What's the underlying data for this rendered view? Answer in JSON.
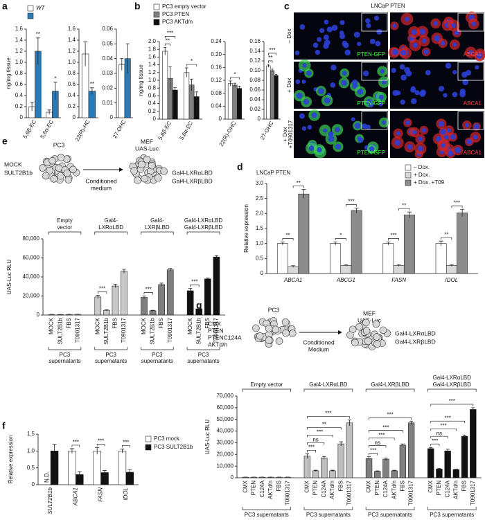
{
  "panel_labels": [
    "a",
    "b",
    "c",
    "d",
    "e",
    "f",
    "g"
  ],
  "microscopy": {
    "title": "LNCaP PTEN",
    "rows": [
      {
        "label": [
          "– Dox"
        ],
        "left": "PTEN-GFP",
        "right": "ABCA1"
      },
      {
        "label": [
          "+ Dox"
        ],
        "left": "PTEN-GFP",
        "right": "ABCA1"
      },
      {
        "label": [
          "+ Dox",
          "+T0901317"
        ],
        "left": "PTEN-GFP",
        "right": "ABCA1"
      }
    ]
  },
  "diagrams": {
    "e": {
      "cell": "PC3",
      "conditions": [
        "MOCK",
        "SULT2B1b"
      ],
      "arrow": [
        "Conditioned",
        "medium"
      ],
      "target": "MEF",
      "reporter": "UAS-Luc",
      "constructs": [
        "Gal4-LXRαLBD",
        "Gal4-LXRβLBD"
      ]
    },
    "g": {
      "cell": "PC3",
      "conditions": [
        "CMX",
        "PTEN",
        "PTENC124A",
        "AKTd/n"
      ],
      "arrow": [
        "Conditioned",
        "Medium"
      ],
      "target": "MEF",
      "reporter": "UAS-Luc",
      "constructs": [
        "Gal4-LXRαLBD",
        "Gal4-LXRβLBD"
      ]
    }
  },
  "chart_data": [
    {
      "type": "bar",
      "ylabel": "ng/mg tissue",
      "categories": [
        "5,6β-EC",
        "5,6α-EC"
      ],
      "series": [
        {
          "name": "WT",
          "color": "#ffffff",
          "values": [
            0.2,
            0.1
          ],
          "errors": [
            0.08,
            0.04
          ]
        },
        {
          "color": "#2a7ab8",
          "values": [
            1.2,
            0.48
          ],
          "errors": [
            0.24,
            0.16
          ],
          "significance": [
            "**",
            "*"
          ]
        }
      ],
      "ylim": [
        0,
        1.6
      ],
      "yticks": [
        0,
        0.2,
        0.4,
        0.6,
        0.8,
        {
          "value": 1,
          "label": "1.0"
        },
        1.2,
        1.4,
        1.6
      ]
    },
    {
      "type": "bar",
      "categories": [
        "22(R)-HC"
      ],
      "series": [
        {
          "color": "#ffffff",
          "values": [
            1.15
          ],
          "errors": [
            0.22
          ]
        },
        {
          "color": "#2a7ab8",
          "values": [
            0.48
          ],
          "errors": [
            0.06
          ],
          "significance": [
            "**"
          ]
        }
      ],
      "ylim": [
        0,
        1.6
      ],
      "yticks": [
        0,
        0.2,
        0.4,
        0.6,
        0.8,
        {
          "value": 1,
          "label": "1.0"
        },
        1.2,
        1.4,
        1.6
      ]
    },
    {
      "type": "bar",
      "categories": [
        "27-OHC"
      ],
      "series": [
        {
          "color": "#ffffff",
          "values": [
            0.036
          ],
          "errors": [
            0.004
          ]
        },
        {
          "color": "#2a7ab8",
          "values": [
            0.04
          ],
          "errors": [
            0.01
          ]
        }
      ],
      "ylim": [
        0,
        0.06
      ],
      "yticks": [
        0,
        0.01,
        0.02,
        0.03,
        0.04,
        0.05,
        0.06
      ]
    },
    {
      "type": "bar",
      "ylabel": "ng/mg tissue",
      "categories": [
        "5,6β-EC",
        "5,6α-EC"
      ],
      "series": [
        {
          "name": "PC3 empty vector",
          "color": "#ffffff",
          "values": [
            1.75,
            1.2
          ],
          "errors": [
            0.1,
            0.12
          ]
        },
        {
          "name": "PC3 PTEN",
          "color": "#7f7f7f",
          "values": [
            1.05,
            0.88
          ],
          "errors": [
            0.3,
            0.15
          ]
        },
        {
          "name": "PC3 AKTd/n",
          "color": "#111111",
          "values": [
            0.75,
            0.58
          ],
          "errors": [
            0.06,
            0.12
          ]
        }
      ],
      "brackets": [
        {
          "category": 0,
          "from": 0,
          "to": 1,
          "text": "**"
        },
        {
          "category": 0,
          "from": 0,
          "to": 2,
          "text": "***"
        },
        {
          "category": 1,
          "from": 0,
          "to": 2,
          "text": "*"
        }
      ],
      "ylim": [
        0,
        2
      ],
      "yticks": [
        0,
        0.2,
        0.4,
        0.6,
        0.8,
        {
          "value": 1,
          "label": "1.0"
        },
        1.2,
        1.4,
        1.6,
        1.8,
        {
          "value": 2,
          "label": "2.0"
        }
      ]
    },
    {
      "type": "bar",
      "categories": [
        "22(R)-OHC"
      ],
      "series": [
        {
          "color": "#ffffff",
          "values": [
            0.11
          ],
          "errors": [
            0.008
          ]
        },
        {
          "color": "#7f7f7f",
          "values": [
            0.105
          ],
          "errors": [
            0.006
          ]
        },
        {
          "color": "#111111",
          "values": [
            0.095
          ],
          "errors": [
            0.007
          ]
        }
      ],
      "brackets": [
        {
          "category": 0,
          "from": 0,
          "to": 2,
          "text": "*"
        }
      ],
      "ylim": [
        0,
        0.24
      ],
      "yticks": [
        0,
        0.04,
        0.08,
        0.12,
        0.16,
        {
          "value": 0.2,
          "label": "0.20"
        },
        0.24
      ]
    },
    {
      "type": "bar",
      "categories": [
        "27-OHC"
      ],
      "series": [
        {
          "color": "#ffffff",
          "values": [
            0.11
          ],
          "errors": [
            0.003
          ]
        },
        {
          "color": "#7f7f7f",
          "values": [
            0.1
          ],
          "errors": [
            0.003
          ]
        },
        {
          "color": "#111111",
          "values": [
            0.09
          ],
          "errors": [
            0.002
          ]
        }
      ],
      "brackets": [
        {
          "category": 0,
          "from": 0,
          "to": 1,
          "text": "**"
        },
        {
          "category": 0,
          "from": 0,
          "to": 2,
          "text": "***"
        }
      ],
      "ylim": [
        0,
        0.16
      ],
      "yticks": [
        0,
        0.02,
        0.04,
        0.06,
        0.08,
        {
          "value": 0.1,
          "label": "0.10"
        },
        0.12,
        0.14,
        0.16
      ]
    },
    {
      "type": "bar",
      "title": "LNCaP PTEN",
      "ylabel": "Relative expression",
      "categories": [
        "ABCA1",
        "ABCG1",
        "FASN",
        "IDOL"
      ],
      "series": [
        {
          "name": "– Dox.",
          "color": "#ffffff",
          "values": [
            1,
            1,
            1,
            1
          ],
          "errors": [
            0.05,
            0.05,
            0.05,
            0.08
          ]
        },
        {
          "name": "+ Dox.",
          "color": "#d9d9d9",
          "values": [
            0.23,
            0.27,
            0.27,
            0.27
          ],
          "errors": [
            0.03,
            0.03,
            0.03,
            0.03
          ]
        },
        {
          "name": "+ Dox. +T09",
          "color": "#8c8c8c",
          "values": [
            2.65,
            2.1,
            1.95,
            2.02
          ],
          "errors": [
            0.15,
            0.08,
            0.1,
            0.12
          ]
        }
      ],
      "brackets": [
        {
          "category": 0,
          "from": 0,
          "to": 1,
          "text": "**"
        },
        {
          "category": 0,
          "from": 1,
          "to": 2,
          "text": "**"
        },
        {
          "category": 1,
          "from": 0,
          "to": 1,
          "text": "*"
        },
        {
          "category": 1,
          "from": 1,
          "to": 2,
          "text": "***"
        },
        {
          "category": 2,
          "from": 0,
          "to": 1,
          "text": "***"
        },
        {
          "category": 2,
          "from": 1,
          "to": 2,
          "text": "**"
        },
        {
          "category": 3,
          "from": 0,
          "to": 1,
          "text": "**"
        },
        {
          "category": 3,
          "from": 1,
          "to": 2,
          "text": "***"
        }
      ],
      "ylim": [
        0,
        3
      ],
      "yticks": [
        0,
        0.5,
        {
          "value": 1,
          "label": "1.0"
        },
        1.5,
        {
          "value": 2,
          "label": "2.0"
        },
        2.5,
        {
          "value": 3,
          "label": "3.0"
        }
      ]
    },
    {
      "type": "bar",
      "ylabel": "UAS-Luc RLU",
      "groups": [
        {
          "label": [
            "Empty",
            "vector"
          ],
          "sublabel": [
            "PC3",
            "supernatants"
          ],
          "color": "#d9d9d9",
          "categories": [
            "MOCK",
            "SULT2B1b",
            "FBS",
            "T0901317"
          ],
          "values": [
            600,
            500,
            600,
            700
          ],
          "errors": [
            100,
            100,
            100,
            100
          ]
        },
        {
          "label": [
            "Gal4-",
            "LXRαLBD"
          ],
          "sublabel": [
            "PC3",
            "supernatants"
          ],
          "color": "#c8c8c8",
          "categories": [
            "MOCK",
            "SULT2B1b",
            "FBS",
            "T0901317"
          ],
          "values": [
            19000,
            5000,
            30500,
            46000
          ],
          "errors": [
            1800,
            600,
            1800,
            2000
          ],
          "brackets": [
            {
              "from": 0,
              "to": 1,
              "text": "***"
            }
          ]
        },
        {
          "label": [
            "Gal4-",
            "LXRβLBD"
          ],
          "sublabel": [
            "PC3",
            "supernatants"
          ],
          "color": "#7f7f7f",
          "categories": [
            "MOCK",
            "SULT2B1b",
            "FBS",
            "T0901317"
          ],
          "values": [
            18500,
            4500,
            32000,
            47500
          ],
          "errors": [
            1500,
            500,
            1500,
            1500
          ],
          "brackets": [
            {
              "from": 0,
              "to": 1,
              "text": "***"
            }
          ]
        },
        {
          "label": [
            "Gal4-LXRαLBD",
            "Gal4-LXRβLBD"
          ],
          "sublabel": [
            "PC3",
            "supernatants"
          ],
          "color": "#111111",
          "categories": [
            "MOCK",
            "SULT2B1b",
            "FBS",
            "T0901317"
          ],
          "values": [
            25500,
            6500,
            38000,
            61000
          ],
          "errors": [
            2500,
            500,
            1000,
            1500
          ],
          "brackets": [
            {
              "from": 0,
              "to": 1,
              "text": "***"
            }
          ]
        }
      ],
      "ylim": [
        0,
        80000
      ],
      "yticks": [
        0,
        {
          "value": 20000,
          "label": "20,000"
        },
        {
          "value": 40000,
          "label": "40,000"
        },
        {
          "value": 60000,
          "label": "60,000"
        },
        {
          "value": 80000,
          "label": "80,000"
        }
      ]
    },
    {
      "type": "bar",
      "ylabel": "Relative expression",
      "categories": [
        "SULT2B1b",
        "ABCA1",
        "FASN",
        "IDOL"
      ],
      "series": [
        {
          "name": "PC3 mock",
          "color": "#ffffff",
          "values": [
            null,
            1,
            1,
            1
          ],
          "errors": [
            null,
            0.07,
            0.1,
            0.06
          ],
          "value_labels": [
            "N.D.",
            null,
            null,
            null
          ]
        },
        {
          "name": "PC3 SULT2B1b",
          "color": "#111111",
          "values": [
            1,
            0.3,
            0.36,
            0.37
          ],
          "errors": [
            0.2,
            0.09,
            0.06,
            0.08
          ]
        }
      ],
      "brackets": [
        {
          "category": 1,
          "from": 0,
          "to": 1,
          "text": "***"
        },
        {
          "category": 2,
          "from": 0,
          "to": 1,
          "text": "***"
        },
        {
          "category": 3,
          "from": 0,
          "to": 1,
          "text": "***"
        }
      ],
      "ylim": [
        0,
        1.5
      ],
      "yticks": [
        0,
        0.5,
        {
          "value": 1,
          "label": "1.0"
        },
        1.5
      ]
    },
    {
      "type": "bar",
      "ylabel": "UAS-Luc RLU",
      "groups": [
        {
          "label": [
            "Empty vector"
          ],
          "sublabel": [
            "PC3 supernatants"
          ],
          "color": "#d9d9d9",
          "categories": [
            "CMX",
            "PTEN",
            "C124A",
            "AKTd/n",
            "FBS",
            "T0901317"
          ],
          "values": [
            500,
            500,
            500,
            500,
            500,
            500
          ],
          "errors": [
            100,
            100,
            100,
            100,
            100,
            100
          ]
        },
        {
          "label": [
            "Gal4-LXRαLBD"
          ],
          "sublabel": [
            "PC3 supernatants"
          ],
          "color": "#bfbfbf",
          "categories": [
            "CMX",
            "PTEN",
            "C124A",
            "AKTd/n",
            "FBS",
            "T0901317"
          ],
          "values": [
            18500,
            6000,
            17000,
            6000,
            29000,
            47000
          ],
          "errors": [
            2000,
            500,
            1200,
            500,
            1800,
            2500
          ],
          "brackets": [
            {
              "from": 0,
              "to": 1,
              "text": "***"
            },
            {
              "from": 0,
              "to": 2,
              "text": "ns"
            },
            {
              "from": 0,
              "to": 3,
              "text": "***"
            },
            {
              "from": 0,
              "to": 4,
              "text": "**"
            },
            {
              "from": 0,
              "to": 5,
              "text": "***"
            }
          ]
        },
        {
          "label": [
            "Gal4-LXRβLBD"
          ],
          "sublabel": [
            "PC3 supernatants"
          ],
          "color": "#808080",
          "categories": [
            "CMX",
            "PTEN",
            "C124A",
            "AKTd/n",
            "FBS",
            "T0901317"
          ],
          "values": [
            16500,
            5500,
            16000,
            6000,
            28000,
            47000
          ],
          "errors": [
            1500,
            400,
            1000,
            400,
            1000,
            1500
          ],
          "brackets": [
            {
              "from": 0,
              "to": 1,
              "text": "***"
            },
            {
              "from": 0,
              "to": 2,
              "text": "ns"
            },
            {
              "from": 0,
              "to": 3,
              "text": "***"
            },
            {
              "from": 0,
              "to": 4,
              "text": "***"
            },
            {
              "from": 0,
              "to": 5,
              "text": "***"
            }
          ]
        },
        {
          "label": [
            "Gal4-LXRαLBD",
            "Gal4-LXRβLBD"
          ],
          "sublabel": [
            "PC3 supernatants"
          ],
          "color": "#111111",
          "categories": [
            "CMX",
            "PTEN",
            "C124A",
            "AKTd/n",
            "FBS",
            "T0901317"
          ],
          "values": [
            25000,
            7500,
            23000,
            7000,
            35500,
            58500
          ],
          "errors": [
            1000,
            400,
            1500,
            300,
            1000,
            1500
          ],
          "brackets": [
            {
              "from": 0,
              "to": 1,
              "text": "***"
            },
            {
              "from": 0,
              "to": 2,
              "text": "ns"
            },
            {
              "from": 0,
              "to": 3,
              "text": "***"
            },
            {
              "from": 0,
              "to": 4,
              "text": "***"
            },
            {
              "from": 0,
              "to": 5,
              "text": "***"
            }
          ]
        }
      ],
      "ylim": [
        0,
        70000
      ],
      "yticks": [
        0,
        {
          "value": 10000,
          "label": "10,000"
        },
        {
          "value": 20000,
          "label": "20,000"
        },
        {
          "value": 30000,
          "label": "30,000"
        },
        {
          "value": 40000,
          "label": "40,000"
        },
        {
          "value": 50000,
          "label": "50,000"
        },
        {
          "value": 60000,
          "label": "60,000"
        },
        {
          "value": 70000,
          "label": "70,000"
        }
      ]
    }
  ]
}
